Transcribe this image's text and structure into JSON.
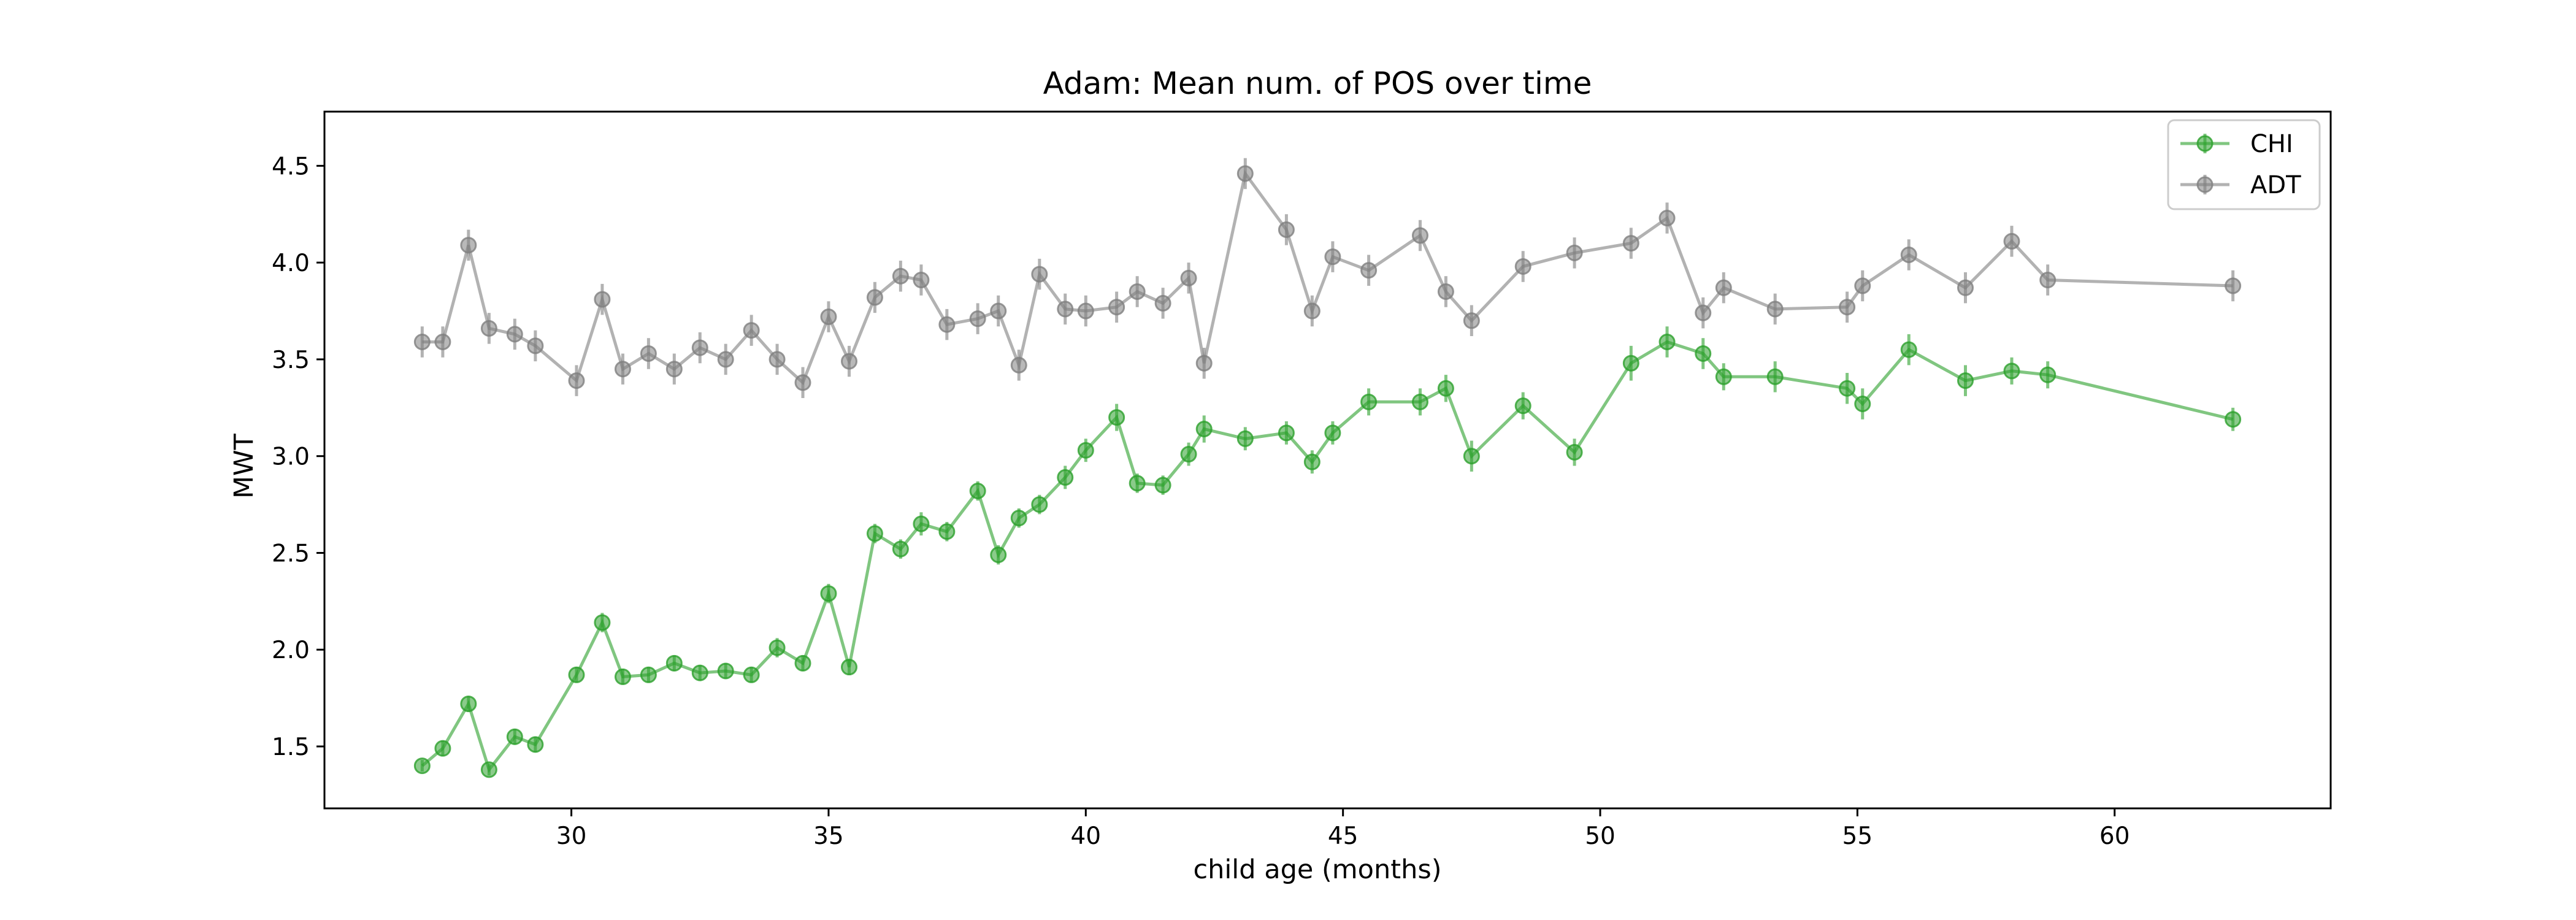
{
  "chart_data": {
    "type": "line",
    "title": "Adam: Mean num. of POS over time",
    "xlabel": "child age (months)",
    "ylabel": "MWT",
    "xlim": [
      25.2,
      64.2
    ],
    "ylim": [
      1.18,
      4.78
    ],
    "xticks": [
      30,
      35,
      40,
      45,
      50,
      55,
      60
    ],
    "yticks": [
      1.5,
      2.0,
      2.5,
      3.0,
      3.5,
      4.0,
      4.5
    ],
    "grid": false,
    "legend_position": "top-right",
    "error_bars": true,
    "series": [
      {
        "name": "CHI",
        "color": "#2ca02c",
        "x": [
          27.1,
          27.5,
          28.0,
          28.4,
          28.9,
          29.3,
          30.1,
          30.6,
          31.0,
          31.5,
          32.0,
          32.5,
          33.0,
          33.5,
          34.0,
          34.5,
          35.0,
          35.4,
          35.9,
          36.4,
          36.8,
          37.3,
          37.9,
          38.3,
          38.7,
          39.1,
          39.6,
          40.0,
          40.6,
          41.0,
          41.5,
          42.0,
          42.3,
          43.1,
          43.9,
          44.4,
          44.8,
          45.5,
          46.5,
          47.0,
          47.5,
          48.5,
          49.5,
          50.6,
          51.3,
          52.0,
          52.4,
          53.4,
          54.8,
          55.1,
          56.0,
          57.1,
          58.0,
          58.7,
          62.3
        ],
        "y": [
          1.4,
          1.49,
          1.72,
          1.38,
          1.55,
          1.51,
          1.87,
          2.14,
          1.86,
          1.87,
          1.93,
          1.88,
          1.89,
          1.87,
          2.01,
          1.93,
          2.29,
          1.91,
          2.6,
          2.52,
          2.65,
          2.61,
          2.82,
          2.49,
          2.68,
          2.75,
          2.89,
          3.03,
          3.2,
          2.86,
          2.85,
          3.01,
          3.14,
          3.09,
          3.12,
          2.97,
          3.12,
          3.28,
          3.28,
          3.35,
          3.0,
          3.26,
          3.02,
          3.48,
          3.59,
          3.53,
          3.41,
          3.41,
          3.35,
          3.27,
          3.55,
          3.39,
          3.44,
          3.42,
          3.19
        ],
        "error": [
          0.03,
          0.04,
          0.04,
          0.03,
          0.04,
          0.04,
          0.04,
          0.05,
          0.04,
          0.04,
          0.04,
          0.04,
          0.04,
          0.04,
          0.05,
          0.04,
          0.05,
          0.04,
          0.05,
          0.05,
          0.06,
          0.05,
          0.05,
          0.05,
          0.05,
          0.05,
          0.06,
          0.06,
          0.07,
          0.05,
          0.05,
          0.06,
          0.07,
          0.06,
          0.06,
          0.06,
          0.06,
          0.07,
          0.07,
          0.07,
          0.08,
          0.07,
          0.07,
          0.09,
          0.08,
          0.08,
          0.07,
          0.08,
          0.08,
          0.08,
          0.08,
          0.08,
          0.07,
          0.07,
          0.06
        ]
      },
      {
        "name": "ADT",
        "color": "#7f7f7f",
        "x": [
          27.1,
          27.5,
          28.0,
          28.4,
          28.9,
          29.3,
          30.1,
          30.6,
          31.0,
          31.5,
          32.0,
          32.5,
          33.0,
          33.5,
          34.0,
          34.5,
          35.0,
          35.4,
          35.9,
          36.4,
          36.8,
          37.3,
          37.9,
          38.3,
          38.7,
          39.1,
          39.6,
          40.0,
          40.6,
          41.0,
          41.5,
          42.0,
          42.3,
          43.1,
          43.9,
          44.4,
          44.8,
          45.5,
          46.5,
          47.0,
          47.5,
          48.5,
          49.5,
          50.6,
          51.3,
          52.0,
          52.4,
          53.4,
          54.8,
          55.1,
          56.0,
          57.1,
          58.0,
          58.7,
          62.3
        ],
        "y": [
          3.59,
          3.59,
          4.09,
          3.66,
          3.63,
          3.57,
          3.39,
          3.81,
          3.45,
          3.53,
          3.45,
          3.56,
          3.5,
          3.65,
          3.5,
          3.38,
          3.72,
          3.49,
          3.82,
          3.93,
          3.91,
          3.68,
          3.71,
          3.75,
          3.47,
          3.94,
          3.76,
          3.75,
          3.77,
          3.85,
          3.79,
          3.92,
          3.48,
          4.46,
          4.17,
          3.75,
          4.03,
          3.96,
          4.14,
          3.85,
          3.7,
          3.98,
          4.05,
          4.1,
          4.23,
          3.74,
          3.87,
          3.76,
          3.77,
          3.88,
          4.04,
          3.87,
          4.11,
          3.91,
          3.88
        ]
      }
    ]
  }
}
